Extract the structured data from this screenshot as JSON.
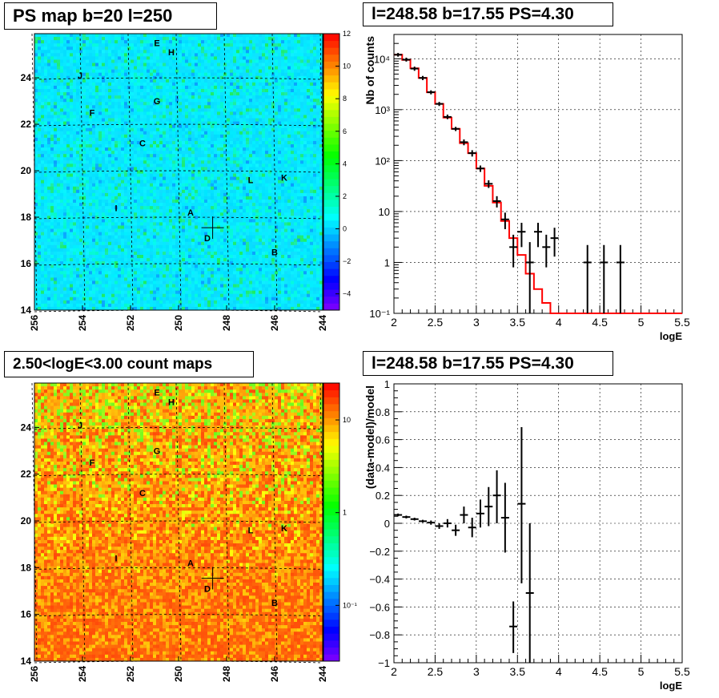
{
  "panels": {
    "ps_map": {
      "title": "PS map b=20 l=250"
    },
    "spectrum": {
      "title": "l=248.58 b=17.55 PS=4.30"
    },
    "count_map": {
      "title": "2.50<logE<3.00 count maps"
    },
    "residual": {
      "title": "l=248.58 b=17.55 PS=4.30"
    }
  },
  "chart_data": [
    {
      "id": "ps_map",
      "type": "heatmap",
      "title": "PS map b=20 l=250",
      "xlim": [
        256,
        244
      ],
      "ylim": [
        14,
        25.9
      ],
      "x_ticks": [
        256,
        254,
        252,
        250,
        248,
        246,
        244
      ],
      "y_ticks": [
        14,
        16,
        18,
        20,
        22,
        24
      ],
      "colorbar": {
        "range": [
          -5,
          12
        ],
        "ticks": [
          -4,
          -2,
          0,
          2,
          4,
          6,
          8,
          10,
          12
        ],
        "labels": [
          "−4",
          "−2",
          "0",
          "2",
          "4",
          "6",
          "8",
          "10",
          "12"
        ]
      },
      "grid": true,
      "marker": {
        "l": 248.58,
        "b": 17.55
      },
      "sources": [
        {
          "label": "E",
          "l": 250.9,
          "b": 25.5
        },
        {
          "label": "H",
          "l": 250.3,
          "b": 25.1
        },
        {
          "label": "J",
          "l": 254.1,
          "b": 24.1
        },
        {
          "label": "G",
          "l": 250.9,
          "b": 23.0
        },
        {
          "label": "F",
          "l": 253.6,
          "b": 22.5
        },
        {
          "label": "C",
          "l": 251.5,
          "b": 21.2
        },
        {
          "label": "L",
          "l": 247.0,
          "b": 19.6
        },
        {
          "label": "K",
          "l": 245.6,
          "b": 19.7
        },
        {
          "label": "I",
          "l": 252.6,
          "b": 18.4
        },
        {
          "label": "A",
          "l": 249.5,
          "b": 18.2
        },
        {
          "label": "D",
          "l": 248.8,
          "b": 17.1
        },
        {
          "label": "B",
          "l": 246.0,
          "b": 16.5
        }
      ]
    },
    {
      "id": "spectrum",
      "type": "line",
      "title": "l=248.58 b=17.55 PS=4.30",
      "xlabel": "logE",
      "ylabel": "Nb of counts",
      "xlim": [
        2,
        5.5
      ],
      "ylim": [
        0.1,
        30000
      ],
      "log_y": true,
      "x_ticks": [
        2,
        2.5,
        3,
        3.5,
        4,
        4.5,
        5,
        5.5
      ],
      "x_tick_labels": [
        "2",
        "2.5",
        "3",
        "3.5",
        "4",
        "4.5",
        "5",
        "5.5"
      ],
      "y_ticks": [
        0.1,
        1,
        10,
        100,
        1000,
        10000
      ],
      "y_tick_labels": [
        "10⁻¹",
        "1",
        "10",
        "10²",
        "10³",
        "10⁴"
      ],
      "grid": true,
      "series": [
        {
          "type": "step",
          "color": "#ff0000",
          "x": [
            2.0,
            2.1,
            2.2,
            2.3,
            2.4,
            2.5,
            2.6,
            2.7,
            2.8,
            2.9,
            3.0,
            3.1,
            3.2,
            3.3,
            3.4,
            3.5,
            3.6,
            3.7,
            3.8,
            3.9,
            4.0,
            4.1,
            4.2,
            4.3,
            4.4,
            4.5,
            4.6,
            4.7,
            4.8,
            4.9,
            5.0,
            5.1,
            5.2,
            5.3,
            5.4
          ],
          "values": [
            12000,
            9500,
            6500,
            4200,
            2200,
            1300,
            700,
            420,
            220,
            140,
            70,
            32,
            15,
            6.5,
            3,
            1.4,
            0.6,
            0.3,
            0.16,
            0.1,
            0.1,
            0.1,
            0.1,
            0.1,
            0.1,
            0.1,
            0.1,
            0.1,
            0.1,
            0.1,
            0.1,
            0.1,
            0.1,
            0.1,
            0.1
          ]
        },
        {
          "type": "errorbar",
          "color": "#000000",
          "points": [
            {
              "x": 2.05,
              "y": 12000,
              "lo": 11000,
              "hi": 13000
            },
            {
              "x": 2.15,
              "y": 9600,
              "lo": 8800,
              "hi": 10500
            },
            {
              "x": 2.25,
              "y": 6400,
              "lo": 5800,
              "hi": 7000
            },
            {
              "x": 2.35,
              "y": 4200,
              "lo": 3800,
              "hi": 4600
            },
            {
              "x": 2.45,
              "y": 2200,
              "lo": 2000,
              "hi": 2400
            },
            {
              "x": 2.55,
              "y": 1300,
              "lo": 1180,
              "hi": 1420
            },
            {
              "x": 2.65,
              "y": 720,
              "lo": 650,
              "hi": 800
            },
            {
              "x": 2.75,
              "y": 420,
              "lo": 380,
              "hi": 460
            },
            {
              "x": 2.85,
              "y": 230,
              "lo": 200,
              "hi": 260
            },
            {
              "x": 2.95,
              "y": 140,
              "lo": 120,
              "hi": 160
            },
            {
              "x": 3.05,
              "y": 70,
              "lo": 60,
              "hi": 80
            },
            {
              "x": 3.15,
              "y": 35,
              "lo": 29,
              "hi": 41
            },
            {
              "x": 3.25,
              "y": 16,
              "lo": 12,
              "hi": 20
            },
            {
              "x": 3.35,
              "y": 7,
              "lo": 4.5,
              "hi": 9.5
            },
            {
              "x": 3.45,
              "y": 2,
              "lo": 0.8,
              "hi": 3.5
            },
            {
              "x": 3.55,
              "y": 4,
              "lo": 2,
              "hi": 6
            },
            {
              "x": 3.65,
              "y": 1,
              "lo": 0.1,
              "hi": 2.5
            },
            {
              "x": 3.75,
              "y": 4,
              "lo": 2,
              "hi": 6
            },
            {
              "x": 3.85,
              "y": 2,
              "lo": 0.8,
              "hi": 3.5
            },
            {
              "x": 3.95,
              "y": 3,
              "lo": 1.3,
              "hi": 4.8
            },
            {
              "x": 4.35,
              "y": 1,
              "lo": 0.1,
              "hi": 2.2
            },
            {
              "x": 4.55,
              "y": 1,
              "lo": 0.1,
              "hi": 2.2
            },
            {
              "x": 4.75,
              "y": 1,
              "lo": 0.1,
              "hi": 2.2
            }
          ]
        }
      ]
    },
    {
      "id": "count_map",
      "type": "heatmap",
      "title": "2.50<logE<3.00 count maps",
      "xlim": [
        256,
        244
      ],
      "ylim": [
        14,
        25.9
      ],
      "x_ticks": [
        256,
        254,
        252,
        250,
        248,
        246,
        244
      ],
      "y_ticks": [
        14,
        16,
        18,
        20,
        22,
        24
      ],
      "colorbar": {
        "log": true,
        "range": [
          0.025,
          25
        ],
        "ticks": [
          0.1,
          1,
          10
        ],
        "labels": [
          "10⁻¹",
          "1",
          "10"
        ]
      },
      "grid": true,
      "marker": {
        "l": 248.58,
        "b": 17.55
      },
      "sources": [
        {
          "label": "E",
          "l": 250.9,
          "b": 25.5
        },
        {
          "label": "H",
          "l": 250.3,
          "b": 25.1
        },
        {
          "label": "J",
          "l": 254.1,
          "b": 24.1
        },
        {
          "label": "G",
          "l": 250.9,
          "b": 23.0
        },
        {
          "label": "F",
          "l": 253.6,
          "b": 22.5
        },
        {
          "label": "C",
          "l": 251.5,
          "b": 21.2
        },
        {
          "label": "L",
          "l": 247.0,
          "b": 19.6
        },
        {
          "label": "K",
          "l": 245.6,
          "b": 19.7
        },
        {
          "label": "I",
          "l": 252.6,
          "b": 18.4
        },
        {
          "label": "A",
          "l": 249.5,
          "b": 18.2
        },
        {
          "label": "D",
          "l": 248.8,
          "b": 17.1
        },
        {
          "label": "B",
          "l": 246.0,
          "b": 16.5
        }
      ]
    },
    {
      "id": "residual",
      "type": "scatter",
      "title": "l=248.58 b=17.55 PS=4.30",
      "xlabel": "logE",
      "ylabel": "(data-model)/model",
      "xlim": [
        2,
        5.5
      ],
      "ylim": [
        -1,
        1
      ],
      "x_ticks": [
        2,
        2.5,
        3,
        3.5,
        4,
        4.5,
        5,
        5.5
      ],
      "x_tick_labels": [
        "2",
        "2.5",
        "3",
        "3.5",
        "4",
        "4.5",
        "5",
        "5.5"
      ],
      "y_ticks": [
        -1,
        -0.8,
        -0.6,
        -0.4,
        -0.2,
        0,
        0.2,
        0.4,
        0.6,
        0.8,
        1
      ],
      "y_tick_labels": [
        "−1",
        "−0.8",
        "−0.6",
        "−0.4",
        "−0.2",
        "0",
        "0.2",
        "0.4",
        "0.6",
        "0.8",
        "1"
      ],
      "grid": true,
      "series": [
        {
          "type": "errorbar",
          "color": "#000000",
          "points": [
            {
              "x": 2.05,
              "y": 0.06,
              "lo": 0.05,
              "hi": 0.07
            },
            {
              "x": 2.15,
              "y": 0.045,
              "lo": 0.035,
              "hi": 0.055
            },
            {
              "x": 2.25,
              "y": 0.03,
              "lo": 0.02,
              "hi": 0.04
            },
            {
              "x": 2.35,
              "y": 0.015,
              "lo": 0.005,
              "hi": 0.025
            },
            {
              "x": 2.45,
              "y": 0.005,
              "lo": -0.01,
              "hi": 0.02
            },
            {
              "x": 2.55,
              "y": -0.02,
              "lo": -0.04,
              "hi": 0.0
            },
            {
              "x": 2.65,
              "y": 0.0,
              "lo": -0.03,
              "hi": 0.03
            },
            {
              "x": 2.75,
              "y": -0.05,
              "lo": -0.09,
              "hi": -0.01
            },
            {
              "x": 2.85,
              "y": 0.06,
              "lo": 0.0,
              "hi": 0.12
            },
            {
              "x": 2.95,
              "y": -0.03,
              "lo": -0.1,
              "hi": 0.04
            },
            {
              "x": 3.05,
              "y": 0.07,
              "lo": -0.03,
              "hi": 0.17
            },
            {
              "x": 3.15,
              "y": 0.12,
              "lo": -0.02,
              "hi": 0.26
            },
            {
              "x": 3.25,
              "y": 0.2,
              "lo": 0.0,
              "hi": 0.38
            },
            {
              "x": 3.35,
              "y": 0.04,
              "lo": -0.21,
              "hi": 0.29
            },
            {
              "x": 3.45,
              "y": -0.74,
              "lo": -0.93,
              "hi": -0.56
            },
            {
              "x": 3.55,
              "y": 0.14,
              "lo": -0.43,
              "hi": 0.69
            },
            {
              "x": 3.65,
              "y": -0.5,
              "lo": -1.0,
              "hi": 0.0
            }
          ]
        }
      ]
    }
  ]
}
